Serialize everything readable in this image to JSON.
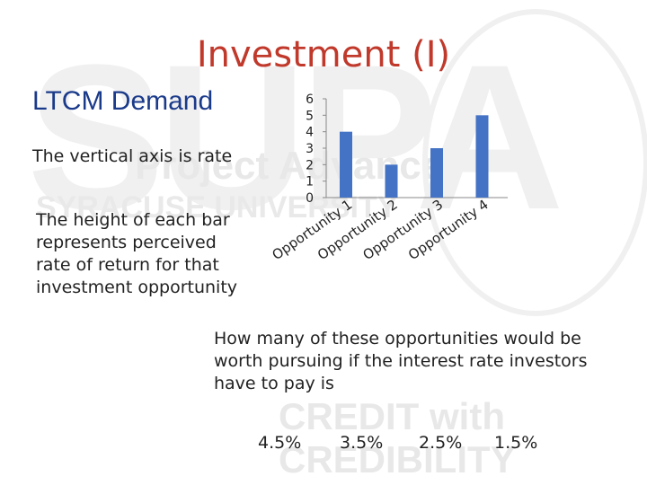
{
  "slide": {
    "title": "Investment (I)",
    "subtitle": "LTCM Demand",
    "vertical_note": "The vertical axis is rate",
    "height_note": "The height of each bar represents perceived rate of return for that investment opportunity",
    "question": "How many of these opportunities would be worth pursuing if the interest rate investors have to pay is",
    "answers": [
      "4.5%",
      "3.5%",
      "2.5%",
      "1.5%"
    ]
  },
  "colors": {
    "title": "#c0392b",
    "subtitle": "#1a3a8a",
    "bar": "#4472c4"
  },
  "chart_data": {
    "type": "bar",
    "categories": [
      "Opportunity 1",
      "Opportunity 2",
      "Opportunity 3",
      "Opportunity 4"
    ],
    "values": [
      4,
      2,
      3,
      5
    ],
    "ylim": [
      0,
      6
    ],
    "yticks": [
      0,
      1,
      2,
      3,
      4,
      5,
      6
    ],
    "grid": false,
    "legend": "none"
  }
}
